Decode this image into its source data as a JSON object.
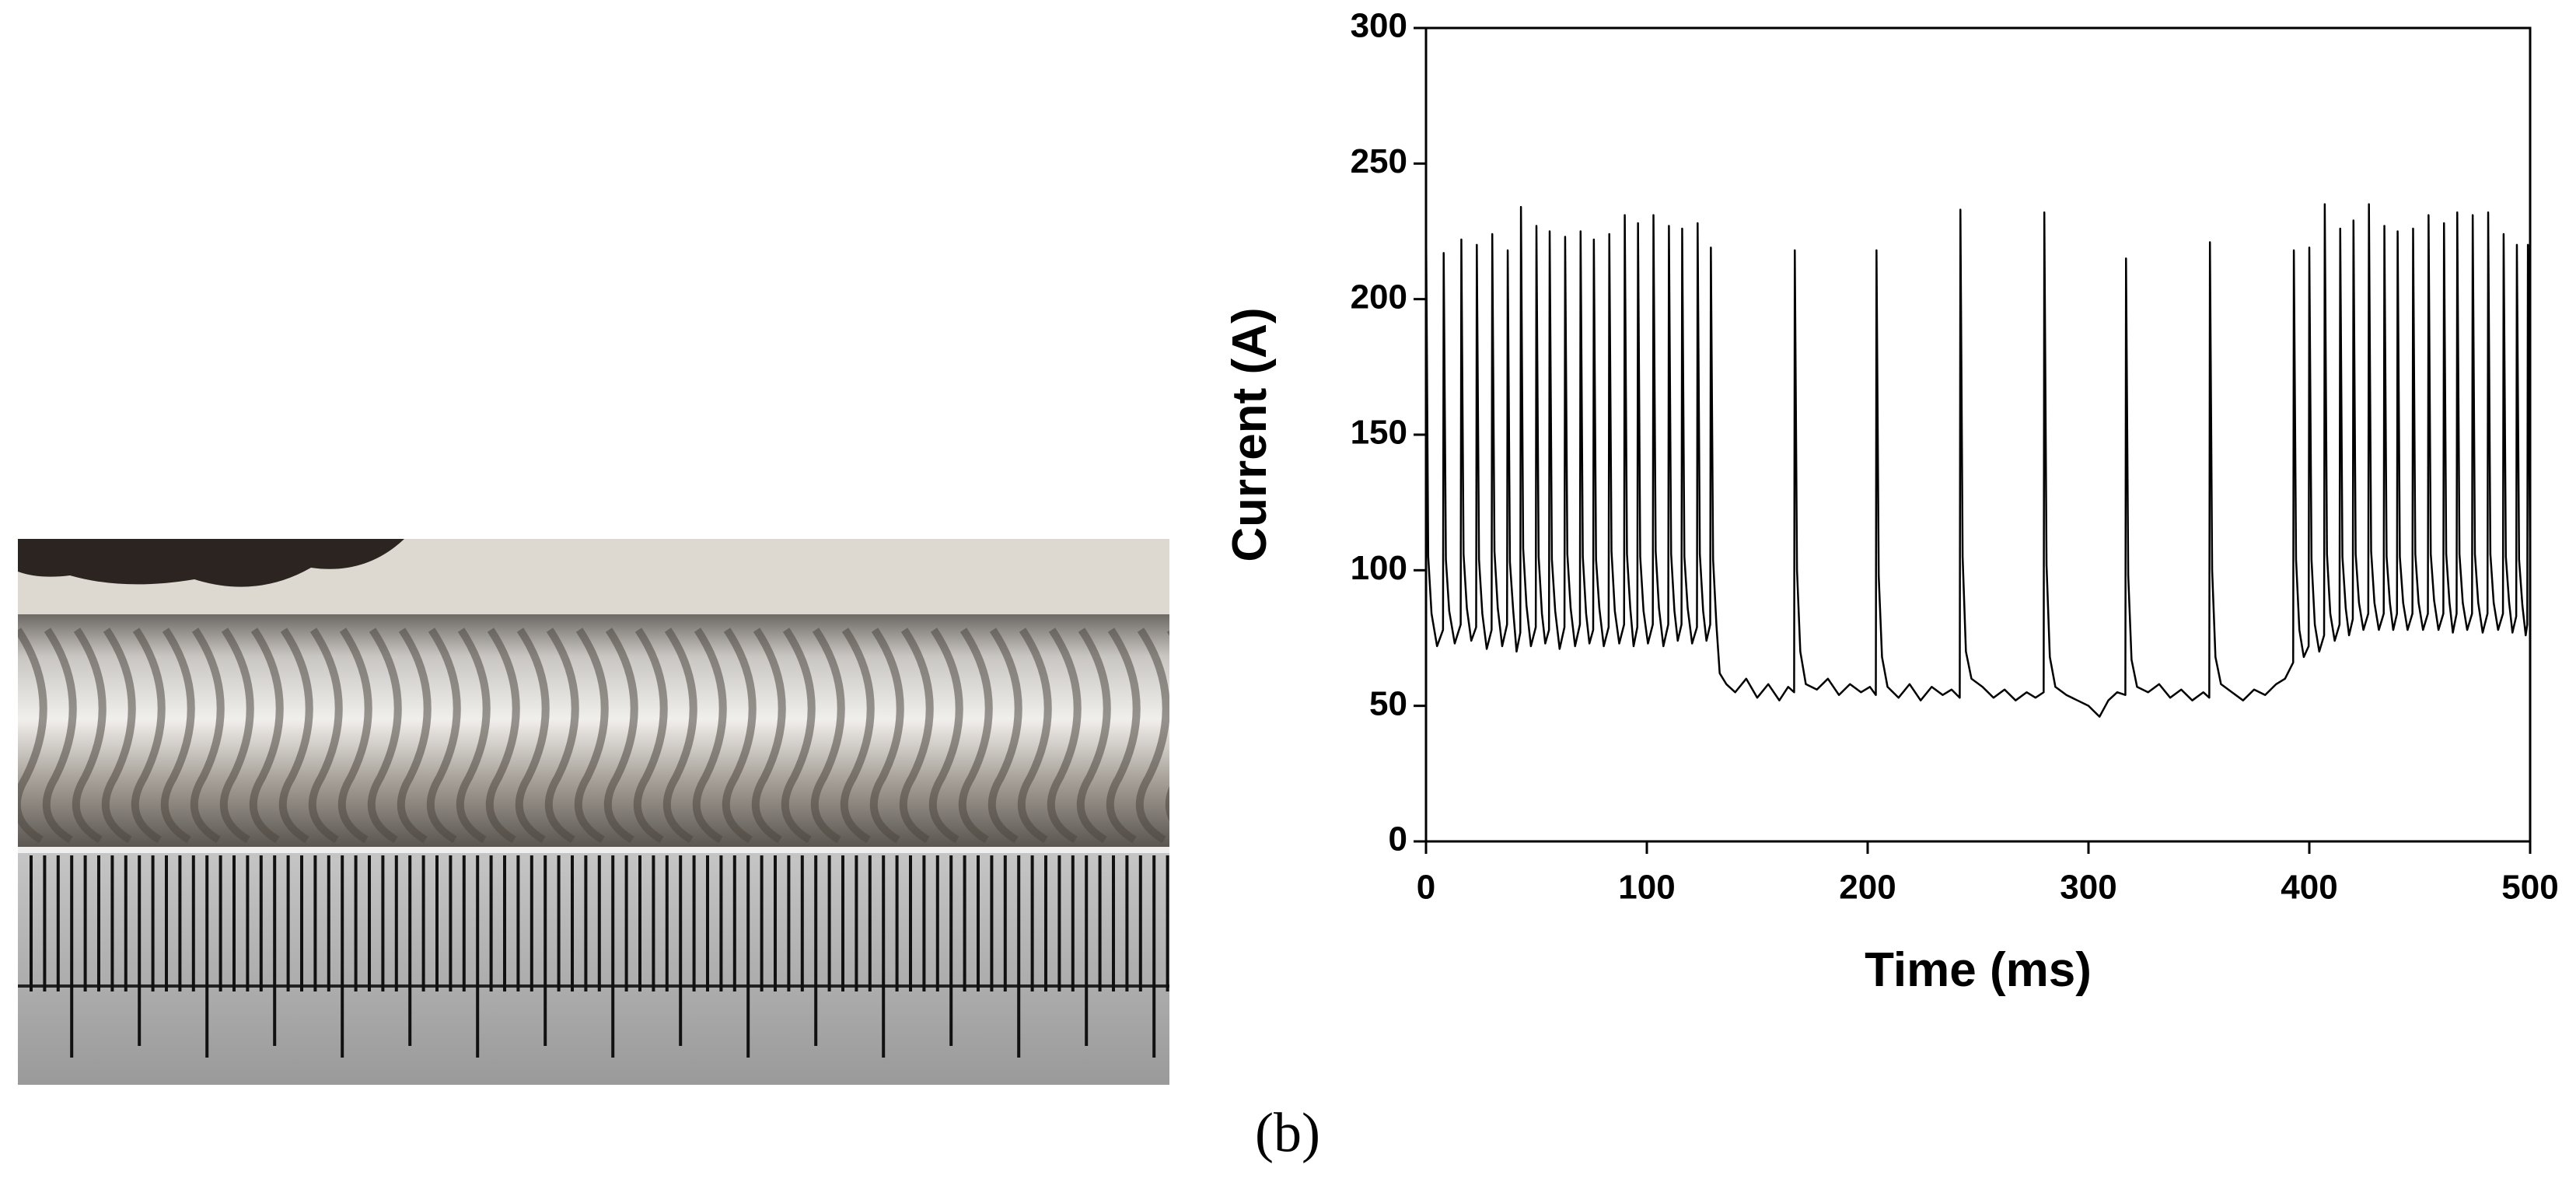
{
  "chart_data": {
    "type": "line",
    "caption": "(b)",
    "xlabel": "Time  (ms)",
    "ylabel": "Current  (A)",
    "color": "#000000",
    "xlim": [
      0,
      500
    ],
    "xticks": [
      0,
      100,
      200,
      300,
      400,
      500
    ],
    "ylim": [
      0,
      300
    ],
    "yticks": [
      0,
      50,
      100,
      150,
      200,
      250,
      300
    ],
    "x": [
      0,
      1,
      2.5,
      5,
      7.7,
      8,
      9,
      10.5,
      13,
      15.7,
      16,
      17,
      18.5,
      20.5,
      22.7,
      23,
      24,
      25.5,
      27.5,
      29.7,
      30,
      31,
      32.5,
      34.5,
      36.7,
      37,
      38,
      39.5,
      41,
      42.7,
      43,
      44,
      45.5,
      47.5,
      49.7,
      50,
      51,
      52.5,
      54,
      55.7,
      56,
      57,
      58.5,
      60.5,
      62.7,
      63,
      64,
      65.5,
      67.5,
      69.7,
      70,
      71,
      72.5,
      74,
      75.7,
      76,
      77,
      78.5,
      80.5,
      82.7,
      83,
      84,
      85.5,
      87.5,
      89.7,
      90,
      91,
      92.5,
      94,
      95.7,
      96,
      97,
      98.5,
      100.5,
      102.7,
      103,
      104,
      105.5,
      107.5,
      109.7,
      110,
      111,
      112.5,
      114,
      115.7,
      116,
      117,
      118.5,
      120.5,
      122.7,
      123,
      124,
      125.5,
      127,
      128.7,
      129,
      130,
      131.5,
      133,
      136,
      140,
      145,
      150,
      155,
      160,
      164,
      166.7,
      167,
      168,
      169.5,
      172,
      177,
      182,
      187,
      192,
      197,
      201,
      203.7,
      204,
      205,
      206.5,
      209,
      214,
      219,
      224,
      229,
      234,
      238,
      241.7,
      242,
      243,
      244.5,
      247,
      252,
      257,
      262,
      267,
      272,
      276,
      279.7,
      280,
      281,
      282.5,
      285,
      290,
      295,
      300,
      305,
      309,
      313,
      316.7,
      317,
      318,
      319.5,
      322,
      327,
      332,
      337,
      342,
      347,
      352,
      354.7,
      355,
      356,
      357.5,
      360,
      365,
      370,
      375,
      380,
      385,
      389,
      392.7,
      393,
      394,
      395.5,
      397.5,
      399.7,
      400,
      401,
      402.5,
      404.5,
      406.7,
      407,
      408,
      409.5,
      411.5,
      413.7,
      414,
      415,
      416.5,
      418,
      419.7,
      420,
      421,
      422.5,
      424.5,
      426.7,
      427,
      428,
      429.5,
      431.5,
      433.7,
      434,
      435,
      436.5,
      438,
      439.7,
      440,
      441,
      442.5,
      444.5,
      446.7,
      447,
      448,
      449.5,
      451.5,
      453.7,
      454,
      455,
      456.5,
      458.5,
      460.7,
      461,
      462,
      463.5,
      465,
      466.7,
      467,
      468,
      469.5,
      471.5,
      473.7,
      474,
      475,
      476.5,
      478.5,
      480.7,
      481,
      482,
      483.5,
      485.5,
      487.7,
      488,
      489,
      490.5,
      492,
      493.7,
      494,
      495,
      496.5,
      498,
      498.7,
      499,
      500
    ],
    "values": [
      230,
      105,
      84,
      72,
      78,
      217,
      104,
      85,
      73,
      80,
      222,
      106,
      86,
      74,
      79,
      220,
      104,
      84,
      71,
      78,
      224,
      107,
      86,
      72,
      80,
      218,
      103,
      85,
      70,
      77,
      234,
      108,
      87,
      72,
      79,
      227,
      105,
      84,
      73,
      78,
      225,
      104,
      85,
      71,
      79,
      223,
      106,
      86,
      72,
      80,
      225,
      105,
      84,
      73,
      78,
      222,
      104,
      86,
      72,
      79,
      224,
      107,
      85,
      73,
      80,
      231,
      106,
      86,
      72,
      79,
      228,
      105,
      85,
      73,
      80,
      231,
      107,
      86,
      72,
      80,
      227,
      106,
      85,
      74,
      80,
      226,
      105,
      86,
      73,
      79,
      228,
      106,
      85,
      74,
      80,
      219,
      104,
      80,
      62,
      58,
      55,
      60,
      53,
      58,
      52,
      57,
      55,
      218,
      100,
      70,
      58,
      56,
      60,
      54,
      58,
      55,
      57,
      54,
      218,
      98,
      68,
      57,
      53,
      58,
      52,
      57,
      54,
      56,
      53,
      233,
      105,
      70,
      60,
      57,
      53,
      56,
      52,
      55,
      53,
      55,
      232,
      102,
      68,
      57,
      54,
      52,
      50,
      46,
      52,
      55,
      54,
      215,
      98,
      67,
      57,
      55,
      58,
      53,
      56,
      52,
      55,
      53,
      221,
      100,
      68,
      58,
      55,
      52,
      56,
      54,
      58,
      60,
      66,
      218,
      104,
      78,
      68,
      72,
      219,
      104,
      80,
      70,
      76,
      235,
      106,
      84,
      74,
      80,
      226,
      105,
      86,
      76,
      82,
      229,
      106,
      88,
      78,
      84,
      235,
      107,
      88,
      78,
      84,
      227,
      105,
      88,
      78,
      84,
      225,
      105,
      88,
      78,
      84,
      226,
      106,
      88,
      78,
      84,
      231,
      106,
      89,
      78,
      84,
      228,
      106,
      88,
      77,
      84,
      232,
      106,
      88,
      78,
      84,
      231,
      106,
      88,
      77,
      84,
      232,
      106,
      88,
      78,
      84,
      224,
      105,
      88,
      77,
      83,
      220,
      104,
      87,
      76,
      80,
      220,
      100
    ]
  }
}
